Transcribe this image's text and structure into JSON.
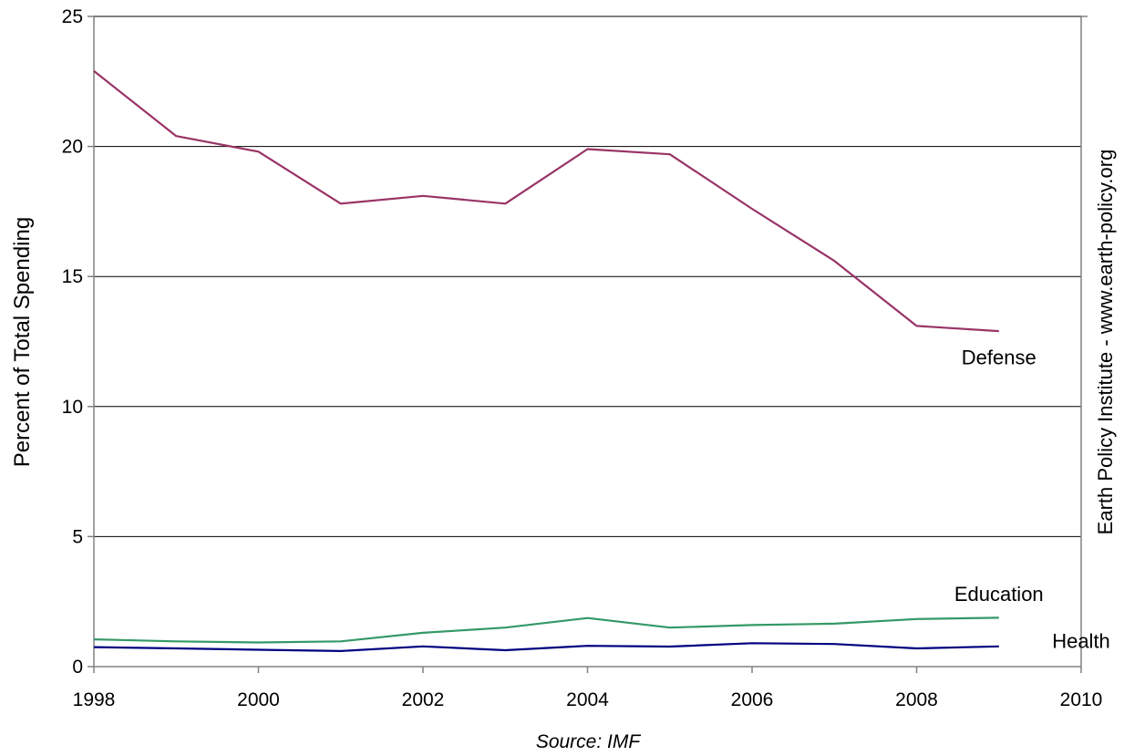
{
  "chart_data": {
    "type": "line",
    "title": "",
    "xlabel": "",
    "ylabel": "Percent of Total Spending",
    "xlim": [
      1998,
      2010
    ],
    "ylim": [
      0,
      25
    ],
    "xticks": [
      1998,
      2000,
      2002,
      2004,
      2006,
      2008,
      2010
    ],
    "yticks": [
      0,
      5,
      10,
      15,
      20,
      25
    ],
    "grid": "horizontal",
    "x": [
      1998,
      1999,
      2000,
      2001,
      2002,
      2003,
      2004,
      2005,
      2006,
      2007,
      2008,
      2009
    ],
    "series": [
      {
        "name": "Defense",
        "color": "#993366",
        "values": [
          22.9,
          20.4,
          19.8,
          17.8,
          18.1,
          17.8,
          19.9,
          19.7,
          17.6,
          15.6,
          13.1,
          12.9
        ]
      },
      {
        "name": "Education",
        "color": "#339966",
        "values": [
          1.05,
          0.97,
          0.93,
          0.97,
          1.3,
          1.5,
          1.87,
          1.5,
          1.6,
          1.65,
          1.83,
          1.88
        ]
      },
      {
        "name": "Health",
        "color": "#000080",
        "values": [
          0.75,
          0.7,
          0.65,
          0.6,
          0.78,
          0.63,
          0.8,
          0.77,
          0.9,
          0.87,
          0.7,
          0.78
        ]
      }
    ],
    "source": "Source: IMF",
    "credit": "Earth Policy Institute - www.earth-policy.org"
  }
}
